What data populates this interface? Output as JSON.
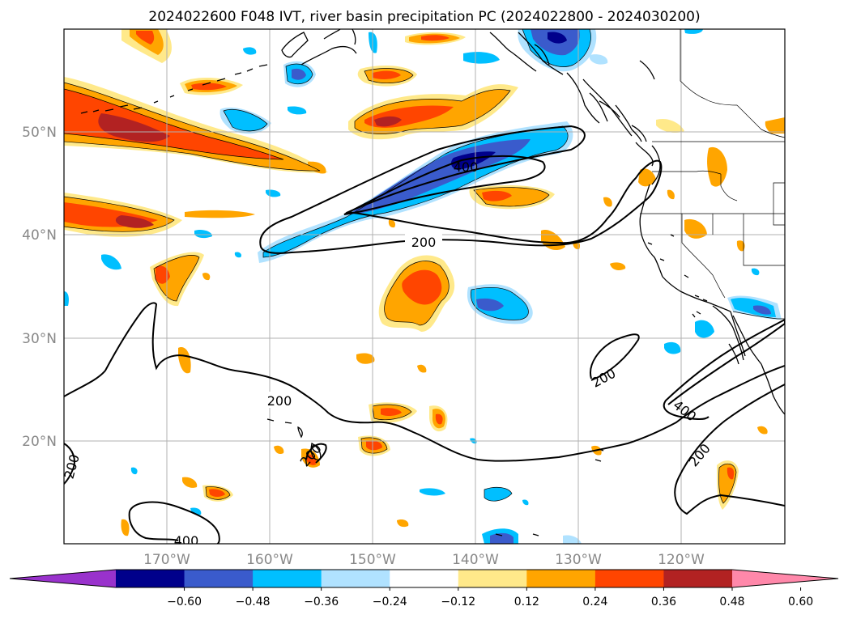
{
  "title": "2024022600 F048 IVT, river basin precipitation PC (2024022800 - 2024030200)",
  "lat_labels": [
    "50°N",
    "40°N",
    "30°N",
    "20°N"
  ],
  "lon_labels": [
    "170°W",
    "160°W",
    "150°W",
    "140°W",
    "130°W",
    "120°W"
  ],
  "contour_labels": [
    "400",
    "200",
    "200",
    "200",
    "200",
    "200",
    "400",
    "400",
    "200"
  ],
  "colorbar": {
    "tick_labels": [
      "−0.60",
      "−0.48",
      "−0.36",
      "−0.24",
      "−0.12",
      "0.12",
      "0.24",
      "0.36",
      "0.48",
      "0.60"
    ],
    "colors": [
      "#9932cc",
      "#00008b",
      "#3a5bcc",
      "#00bfff",
      "#b0e2ff",
      "#ffffff",
      "#ffe98a",
      "#ffa500",
      "#ff4500",
      "#b22222",
      "#ff88aa"
    ]
  },
  "chart_data": {
    "type": "heatmap",
    "title": "2024022600 F048 IVT, river basin precipitation PC (2024022800 - 2024030200)",
    "lon_range": [
      -180,
      -110
    ],
    "lat_range": [
      10,
      60
    ],
    "lon_ticks": [
      -170,
      -160,
      -150,
      -140,
      -130,
      -120
    ],
    "lat_ticks": [
      50,
      40,
      30,
      20
    ],
    "grid": true,
    "colorbar_levels": [
      -0.6,
      -0.48,
      -0.36,
      -0.24,
      -0.12,
      0.12,
      0.24,
      0.36,
      0.48,
      0.6
    ],
    "ivt_contour_levels": [
      200,
      400
    ]
  }
}
